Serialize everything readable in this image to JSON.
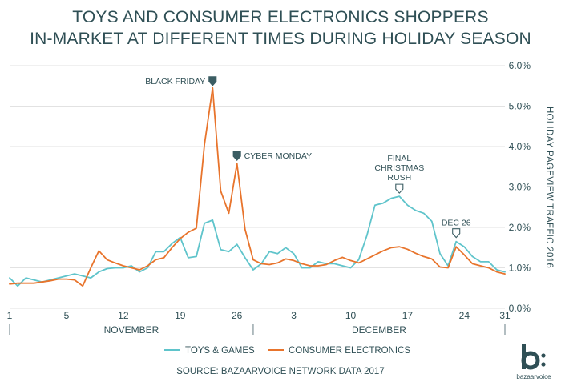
{
  "title_lines": [
    "TOYS AND CONSUMER ELECTRONICS SHOPPERS",
    "IN-MARKET AT DIFFERENT TIMES DURING HOLIDAY SEASON"
  ],
  "source": "SOURCE: BAZAARVOICE NETWORK DATA 2017",
  "logo_text": "bazaarvoice",
  "colors": {
    "toys": "#5fc4cb",
    "electronics": "#e8742c",
    "text": "#2f4f55",
    "grid": "#e2e2e2",
    "axis": "#8a9ba0"
  },
  "chart_data": {
    "type": "line",
    "title": "TOYS AND CONSUMER ELECTRONICS SHOPPERS IN-MARKET AT DIFFERENT TIMES DURING HOLIDAY SEASON",
    "ylabel": "HOLIDAY PAGEVIEW TRAFFIC 2016",
    "ylim": [
      0,
      6
    ],
    "yticks": [
      0,
      1,
      2,
      3,
      4,
      5,
      6
    ],
    "ytick_labels": [
      "0.0%",
      "1.0%",
      "2.0%",
      "3.0%",
      "4.0%",
      "5.0%",
      "6.0%"
    ],
    "xlim": [
      0,
      61
    ],
    "x_start_date": "Nov 1",
    "xtick_positions": [
      0,
      7,
      14,
      21,
      28,
      35,
      42,
      49,
      56,
      61
    ],
    "xtick_labels": [
      "1",
      "5",
      "12",
      "19",
      "26",
      "3",
      "10",
      "17",
      "24",
      "31"
    ],
    "months": [
      {
        "label": "NOVEMBER",
        "center": 15
      },
      {
        "label": "DECEMBER",
        "center": 45.5
      }
    ],
    "month_dividers": [
      0,
      30,
      61
    ],
    "grid": "horizontal",
    "legend": {
      "position": "bottom",
      "entries": [
        "TOYS & GAMES",
        "CONSUMER ELECTRONICS"
      ]
    },
    "series": [
      {
        "name": "TOYS & GAMES",
        "values": [
          0.75,
          0.55,
          0.75,
          0.7,
          0.65,
          0.7,
          0.75,
          0.8,
          0.85,
          0.8,
          0.75,
          0.9,
          0.98,
          1.0,
          1.0,
          1.05,
          0.9,
          1.0,
          1.4,
          1.4,
          1.6,
          1.75,
          1.25,
          1.28,
          2.1,
          2.18,
          1.45,
          1.4,
          1.58,
          1.25,
          0.95,
          1.1,
          1.4,
          1.35,
          1.5,
          1.35,
          1.0,
          1.0,
          1.15,
          1.1,
          1.1,
          1.05,
          1.0,
          1.2,
          1.8,
          2.55,
          2.6,
          2.72,
          2.77,
          2.55,
          2.42,
          2.35,
          2.15,
          1.35,
          1.05,
          1.65,
          1.52,
          1.28,
          1.15,
          1.15,
          0.95,
          0.9
        ]
      },
      {
        "name": "CONSUMER ELECTRONICS",
        "values": [
          0.6,
          0.62,
          0.62,
          0.62,
          0.65,
          0.68,
          0.72,
          0.72,
          0.7,
          0.55,
          1.0,
          1.42,
          1.2,
          1.12,
          1.05,
          1.0,
          0.95,
          1.05,
          1.2,
          1.25,
          1.5,
          1.72,
          1.88,
          1.98,
          4.05,
          5.45,
          2.9,
          2.35,
          3.58,
          1.95,
          1.2,
          1.1,
          1.08,
          1.12,
          1.22,
          1.18,
          1.1,
          1.05,
          1.05,
          1.08,
          1.18,
          1.26,
          1.18,
          1.12,
          1.22,
          1.32,
          1.42,
          1.5,
          1.52,
          1.46,
          1.36,
          1.28,
          1.22,
          1.02,
          1.0,
          1.52,
          1.32,
          1.1,
          1.05,
          1.0,
          0.9,
          0.85
        ]
      }
    ],
    "annotations": [
      {
        "label": "BLACK FRIDAY",
        "x": 25,
        "y": 5.45,
        "style": "filled",
        "align": "left"
      },
      {
        "label": "CYBER MONDAY",
        "x": 28,
        "y": 3.58,
        "style": "filled",
        "align": "right"
      },
      {
        "label": "FINAL CHRISTMAS RUSH",
        "x": 48,
        "y": 2.77,
        "style": "outline",
        "align": "above",
        "lines": [
          "FINAL",
          "CHRISTMAS",
          "RUSH"
        ]
      },
      {
        "label": "DEC 26",
        "x": 55,
        "y": 1.65,
        "style": "outline",
        "align": "above"
      }
    ]
  }
}
